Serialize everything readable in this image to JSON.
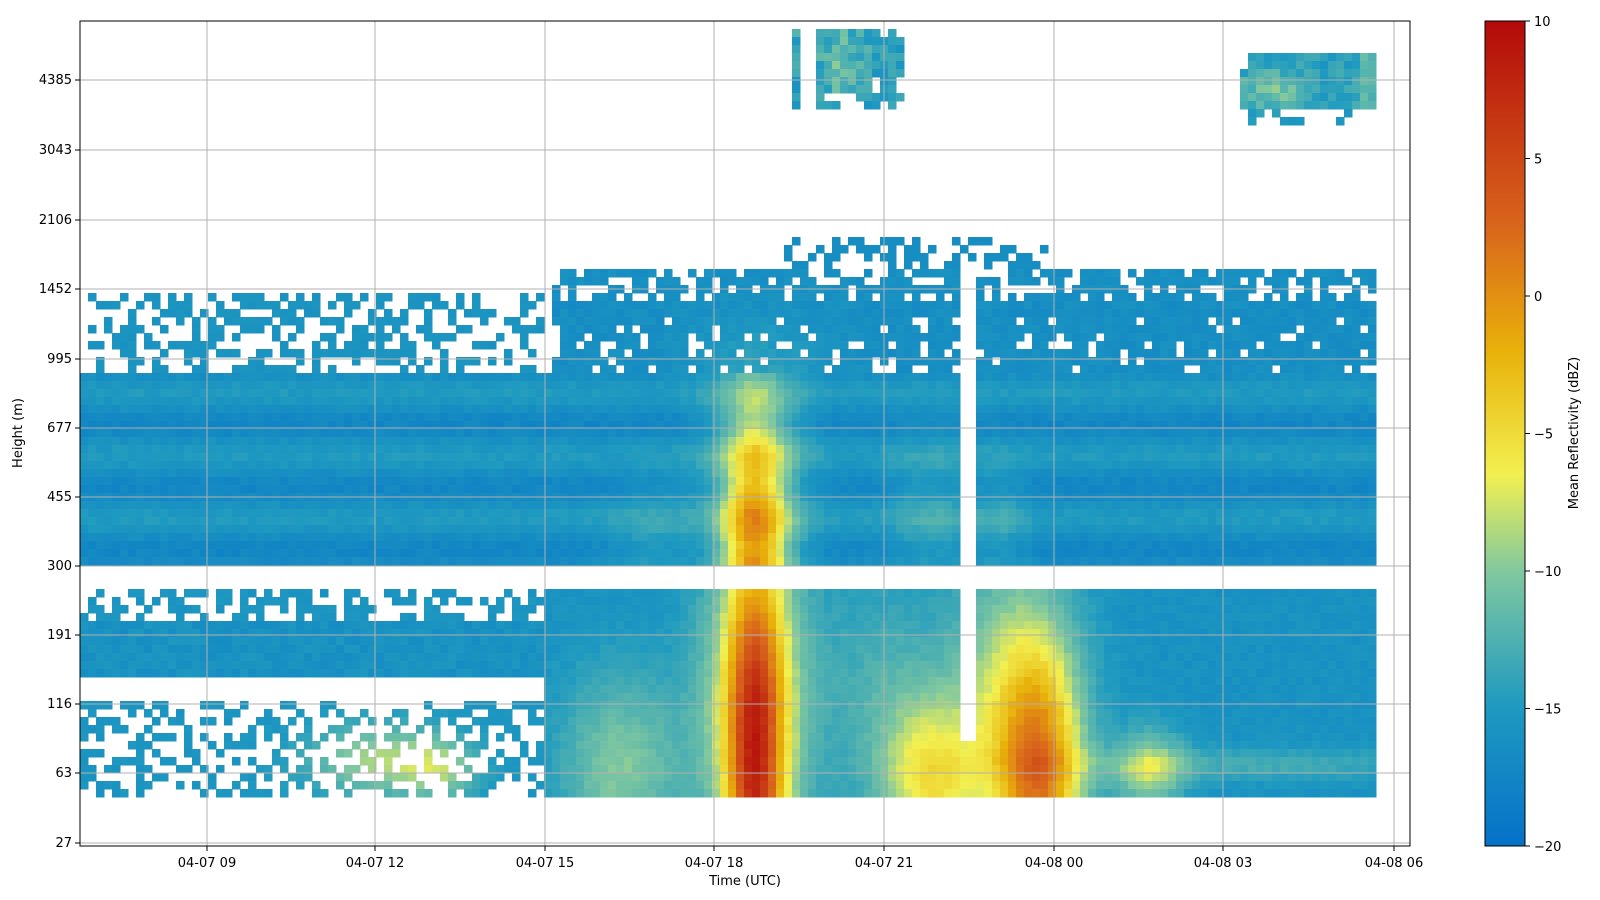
{
  "chart_data": {
    "type": "heatmap",
    "xlabel": "Time (UTC)",
    "ylabel": "Height (m)",
    "colorbar_label": "Mean Reflectivity (dBZ)",
    "colorbar_range": [
      -20,
      10
    ],
    "colorbar_ticks": [
      "10",
      "5",
      "0",
      "−5",
      "−10",
      "−15",
      "−20"
    ],
    "colorscale": [
      "#0571c8",
      "#1f9ac0",
      "#7fc7a0",
      "#f2f051",
      "#e8b10a",
      "#d9661c",
      "#b30a0a"
    ],
    "x_ticks": [
      "04-07 09",
      "04-07 12",
      "04-07 15",
      "04-07 18",
      "04-07 21",
      "04-08 00",
      "04-08 03",
      "04-08 06"
    ],
    "x_range": [
      "04-07 06:50",
      "04-08 06:30"
    ],
    "y_ticks": [
      "27",
      "63",
      "116",
      "191",
      "300",
      "455",
      "677",
      "995",
      "1452",
      "2106",
      "3043",
      "4385"
    ],
    "grid": true,
    "features": [
      {
        "time_range": [
          "04-07 07:00",
          "04-08 06:15"
        ],
        "height_range": [
          270,
          850
        ],
        "dbz": -16
      },
      {
        "time_range": [
          "04-07 18:30",
          "04-07 20:00"
        ],
        "height_range": [
          40,
          800
        ],
        "dbz": -4
      },
      {
        "time_range": [
          "04-07 22:15",
          "04-08 00:45"
        ],
        "height_range": [
          40,
          250
        ],
        "dbz": -3
      },
      {
        "time_range": [
          "04-07 19:40",
          "04-07 21:20"
        ],
        "height_range": [
          3700,
          5600
        ],
        "dbz": -12
      },
      {
        "time_range": [
          "04-08 04:00",
          "04-08 06:15"
        ],
        "height_range": [
          3600,
          4700
        ],
        "dbz": -10
      }
    ]
  }
}
